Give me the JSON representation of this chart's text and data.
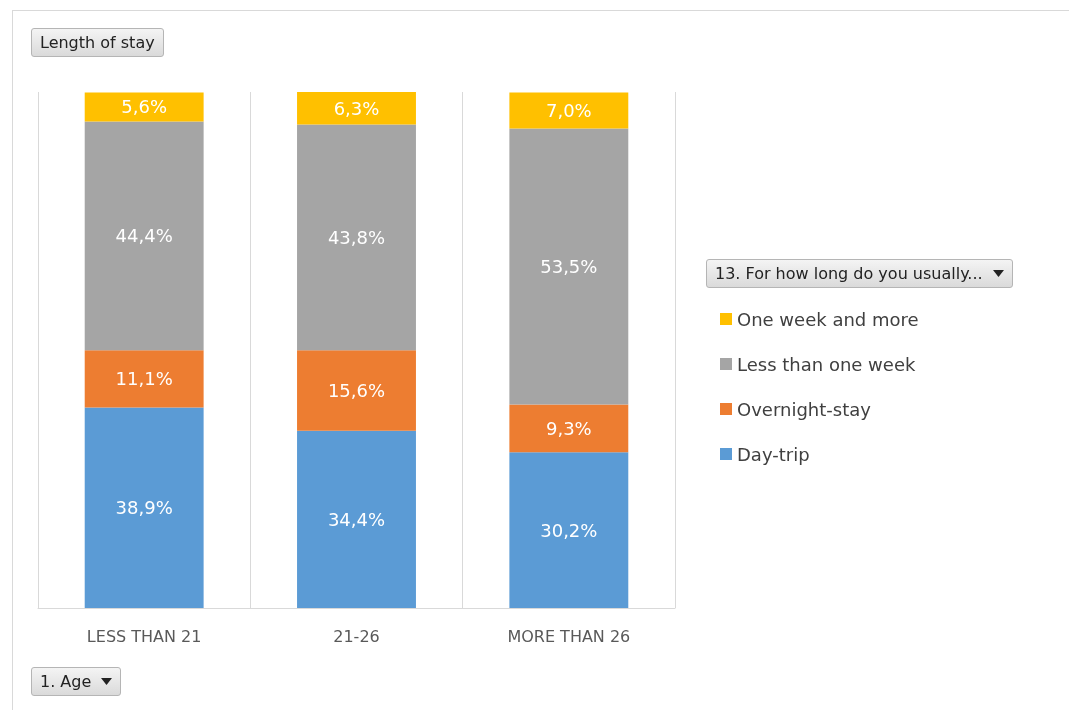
{
  "chart_data": {
    "type": "bar",
    "stacked": true,
    "title": "Length of stay",
    "xlabel": "1. Age",
    "legend_title": "13. For how long do you usually...",
    "legend": "right",
    "grid": "x",
    "marker": "square",
    "categories": [
      "LESS THAN 21",
      "21-26",
      "MORE THAN 26"
    ],
    "series": [
      {
        "name": "Day-trip",
        "color": "#5b9bd5",
        "values": [
          38.9,
          34.4,
          30.2
        ],
        "value_labels": [
          "38,9%",
          "34,4%",
          "30,2%"
        ]
      },
      {
        "name": "Overnight-stay",
        "color": "#ed7d31",
        "values": [
          11.1,
          15.6,
          9.3
        ],
        "value_labels": [
          "11,1%",
          "15,6%",
          "9,3%"
        ]
      },
      {
        "name": "Less than one week",
        "color": "#a5a5a5",
        "values": [
          44.4,
          43.8,
          53.5
        ],
        "value_labels": [
          "44,4%",
          "43,8%",
          "53,5%"
        ]
      },
      {
        "name": "One week and more",
        "color": "#ffc000",
        "values": [
          5.6,
          6.3,
          7.0
        ],
        "value_labels": [
          "5,6%",
          "6,3%",
          "7,0%"
        ]
      }
    ]
  }
}
